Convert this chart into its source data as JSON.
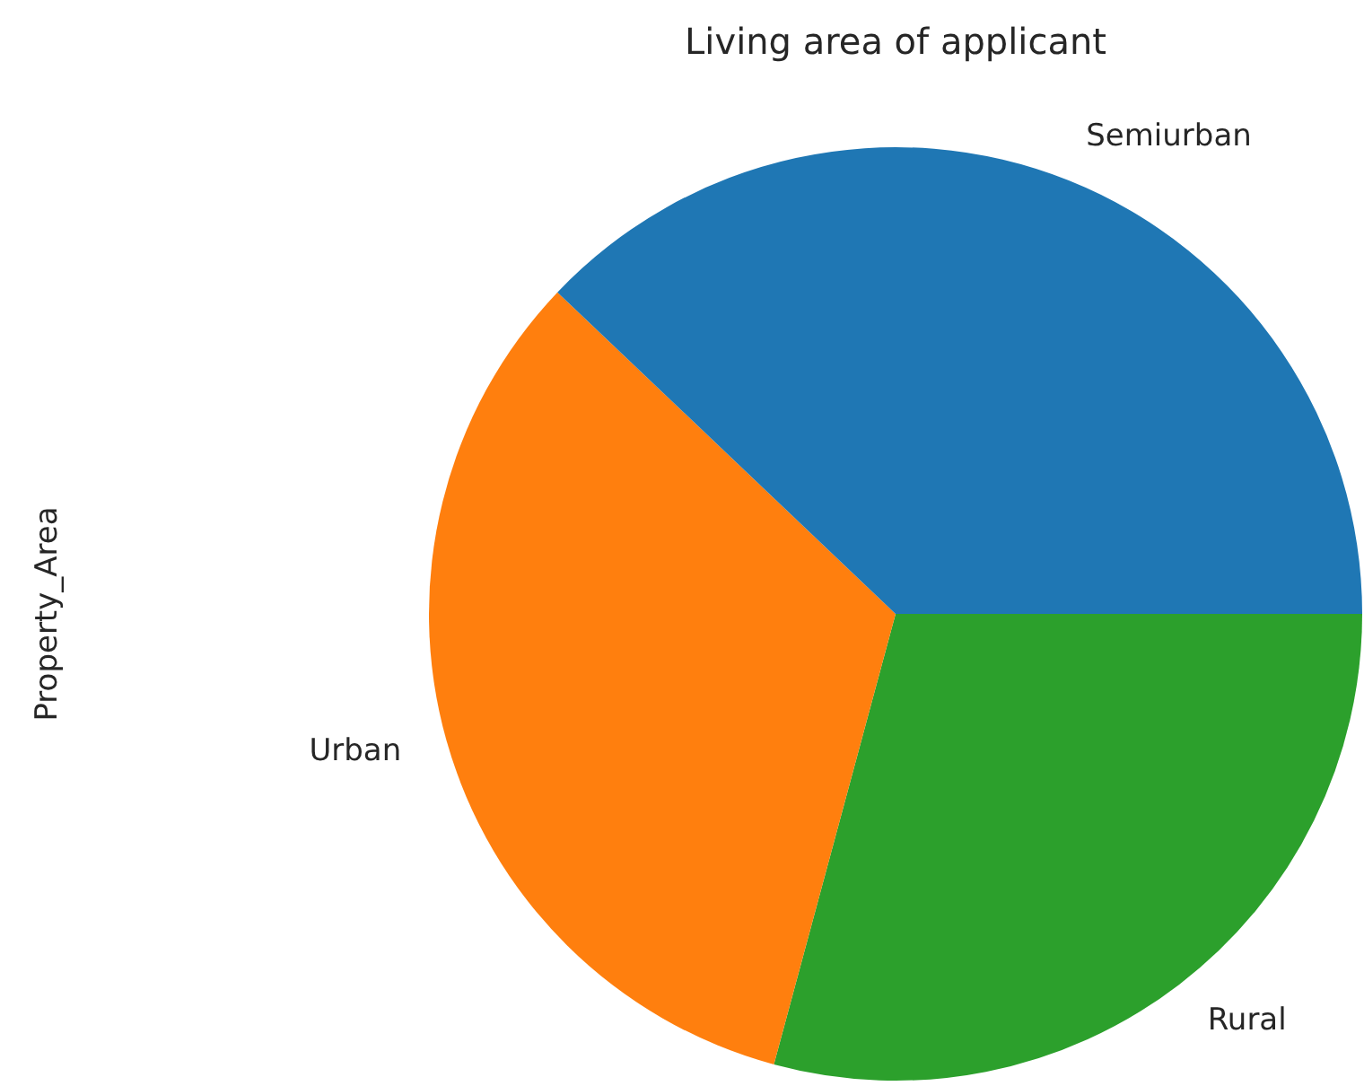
{
  "chart_data": {
    "type": "pie",
    "title": "Living area of applicant",
    "ylabel": "Property_Area",
    "categories": [
      "Semiurban",
      "Urban",
      "Rural"
    ],
    "values": [
      37.9,
      32.9,
      29.2
    ],
    "colors": [
      "#1f77b4",
      "#ff7f0e",
      "#2ca02c"
    ],
    "legend": false
  }
}
